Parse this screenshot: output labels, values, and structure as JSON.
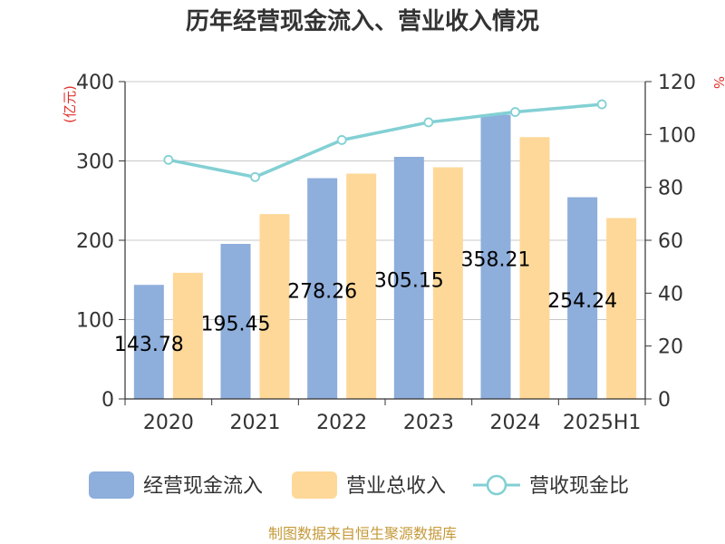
{
  "chart_data": {
    "type": "bar+line",
    "title": "历年经营现金流入、营业收入情况",
    "categories": [
      "2020",
      "2021",
      "2022",
      "2023",
      "2024",
      "2025H1"
    ],
    "y_left": {
      "unit": "(亿元)",
      "range": [
        0,
        400
      ],
      "ticks": [
        0,
        100,
        200,
        300,
        400
      ]
    },
    "y_right": {
      "unit": "%",
      "range": [
        0,
        120
      ],
      "ticks": [
        0,
        20,
        40,
        60,
        80,
        100,
        120
      ]
    },
    "grid": true,
    "legend_position": "bottom",
    "series": [
      {
        "name": "经营现金流入",
        "type": "bar",
        "axis": "left",
        "color": "#8eaedb",
        "values": [
          143.78,
          195.45,
          278.26,
          305.15,
          358.21,
          254.24
        ],
        "data_labels": [
          "143.78",
          "195.45",
          "278.26",
          "305.15",
          "358.21",
          "254.24"
        ]
      },
      {
        "name": "营业总收入",
        "type": "bar",
        "axis": "left",
        "color": "#fed899",
        "values": [
          159,
          233,
          284,
          292,
          330,
          228
        ]
      },
      {
        "name": "营收现金比",
        "type": "line",
        "axis": "right",
        "color": "#82d0d4",
        "values": [
          90.4,
          83.9,
          97.9,
          104.6,
          108.5,
          111.4
        ]
      }
    ],
    "source": "制图数据来自恒生聚源数据库"
  }
}
